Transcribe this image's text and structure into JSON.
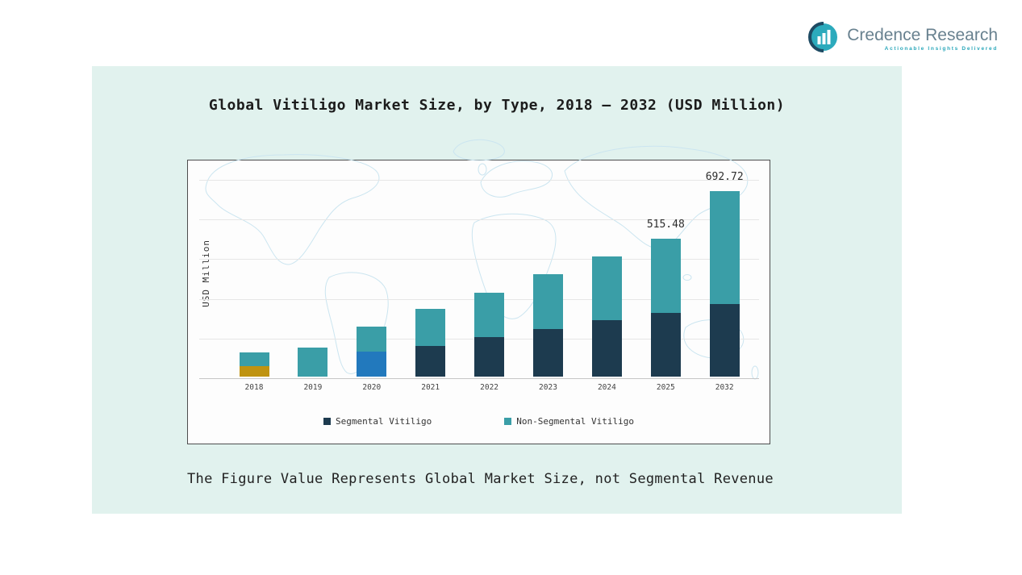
{
  "page": {
    "background": "#ffffff",
    "panel_background": "#e1f2ee"
  },
  "brand": {
    "name": "Credence Research",
    "tagline": "Actionable Insights Delivered",
    "logo_icon": "bar-chart-icon",
    "accent_color": "#2aa7ba"
  },
  "chart": {
    "title": "Global Vitiligo Market Size, by Type, 2018 – 2032 (USD Million)",
    "y_axis_label": "USD Million",
    "note": "The Figure Value Represents Global Market Size, not Segmental Revenue"
  },
  "chart_data": {
    "type": "bar",
    "stacked": true,
    "title": "Global Vitiligo Market Size, by Type, 2018 – 2032 (USD Million)",
    "xlabel": "",
    "ylabel": "USD Million",
    "categories": [
      "2018",
      "2019",
      "2020",
      "2021",
      "2022",
      "2023",
      "2024",
      "2025",
      "2032"
    ],
    "series": [
      {
        "name": "Segmental Vitiligo",
        "color": "#1d3b4f",
        "values": [
          39,
          0,
          92,
          113,
          146,
          179,
          212,
          238,
          272
        ]
      },
      {
        "name": "Non-Segmental Vitiligo",
        "color": "#3a9ea7",
        "values": [
          51,
          107,
          96,
          140,
          167,
          202,
          235,
          277.48,
          420.72
        ]
      }
    ],
    "totals": [
      90,
      107,
      188,
      253,
      313,
      381,
      447,
      515.48,
      692.72
    ],
    "data_labels": [
      null,
      null,
      null,
      null,
      null,
      null,
      null,
      "515.48",
      "692.72"
    ],
    "segment_color_overrides": {
      "2018": "#bf9310",
      "2020": "#2279bd"
    },
    "ylim": [
      0,
      740
    ],
    "grid": true,
    "legend_position": "bottom"
  }
}
